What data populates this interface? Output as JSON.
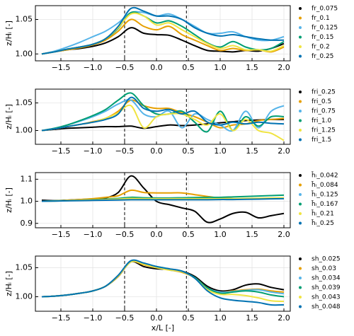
{
  "chart_data": [
    {
      "type": "line",
      "ylabel": "z/Hᵢ [-]",
      "xlim": [
        -1.9,
        2.1
      ],
      "ylim": [
        0.99,
        1.07
      ],
      "xticks": [
        {
          "value": -1.5,
          "label": "−1.5"
        },
        {
          "value": -1.0,
          "label": "−1.0"
        },
        {
          "value": -0.5,
          "label": "−0.5"
        },
        {
          "value": 0,
          "label": "0.0"
        },
        0.5,
        {
          "value": 1.0,
          "label": "1.0"
        },
        1.5,
        {
          "value": 2.0,
          "label": "2.0"
        }
      ],
      "yticks": [
        {
          "value": 1.0,
          "label": "1.00"
        },
        1.05
      ],
      "grid": true,
      "vlines": [
        -0.5,
        0.47
      ],
      "x": [
        -1.8,
        -1.6,
        -1.4,
        -1.2,
        -1.0,
        -0.8,
        -0.6,
        -0.4,
        -0.2,
        0.0,
        0.2,
        0.4,
        0.6,
        0.8,
        1.0,
        1.2,
        1.4,
        1.6,
        1.8,
        2.0
      ],
      "series": [
        {
          "name": "fr_0.075",
          "color": "#000000",
          "values": [
            1.0,
            1.003,
            1.006,
            1.008,
            1.011,
            1.016,
            1.025,
            1.038,
            1.03,
            1.028,
            1.027,
            1.02,
            1.012,
            1.005,
            1.004,
            1.003,
            1.005,
            1.004,
            1.008,
            1.015
          ]
        },
        {
          "name": "fr_0.1",
          "color": "#E69F00",
          "values": [
            1.0,
            1.003,
            1.006,
            1.009,
            1.013,
            1.02,
            1.033,
            1.05,
            1.04,
            1.035,
            1.04,
            1.028,
            1.02,
            1.012,
            1.005,
            1.008,
            1.005,
            1.006,
            1.003,
            1.01
          ]
        },
        {
          "name": "fr_0.125",
          "color": "#56B4E9",
          "values": [
            1.0,
            1.004,
            1.01,
            1.017,
            1.025,
            1.033,
            1.045,
            1.06,
            1.06,
            1.055,
            1.058,
            1.05,
            1.04,
            1.03,
            1.03,
            1.032,
            1.025,
            1.02,
            1.02,
            1.025
          ]
        },
        {
          "name": "fr_0.15",
          "color": "#009E73",
          "values": [
            1.0,
            1.003,
            1.007,
            1.01,
            1.014,
            1.022,
            1.037,
            1.06,
            1.055,
            1.045,
            1.048,
            1.04,
            1.028,
            1.016,
            1.01,
            1.018,
            1.01,
            1.006,
            1.008,
            1.018
          ]
        },
        {
          "name": "fr_0.2",
          "color": "#F0E442",
          "values": [
            1.0,
            1.003,
            1.007,
            1.01,
            1.014,
            1.022,
            1.038,
            1.058,
            1.055,
            1.042,
            1.045,
            1.035,
            1.025,
            1.015,
            1.008,
            1.012,
            1.006,
            1.006,
            1.004,
            1.012
          ]
        },
        {
          "name": "fr_0.25",
          "color": "#0072B2",
          "values": [
            1.0,
            1.003,
            1.007,
            1.01,
            1.014,
            1.022,
            1.04,
            1.066,
            1.062,
            1.055,
            1.055,
            1.05,
            1.038,
            1.03,
            1.026,
            1.028,
            1.025,
            1.022,
            1.02,
            1.02
          ]
        }
      ]
    },
    {
      "type": "line",
      "ylabel": "z/Hᵢ [-]",
      "xlim": [
        -1.9,
        2.1
      ],
      "ylim": [
        0.975,
        1.075
      ],
      "xticks": [
        {
          "value": -1.5,
          "label": "−1.5"
        },
        {
          "value": -1.0,
          "label": "−1.0"
        },
        {
          "value": -0.5,
          "label": "−0.5"
        },
        {
          "value": 0,
          "label": "0.0"
        },
        0.5,
        {
          "value": 1.0,
          "label": "1.0"
        },
        1.5,
        {
          "value": 2.0,
          "label": "2.0"
        }
      ],
      "yticks": [
        {
          "value": 1.0,
          "label": "1.00"
        },
        1.05
      ],
      "grid": true,
      "vlines": [
        -0.5,
        0.47
      ],
      "x": [
        -1.8,
        -1.6,
        -1.4,
        -1.2,
        -1.0,
        -0.8,
        -0.6,
        -0.4,
        -0.2,
        0.0,
        0.2,
        0.4,
        0.6,
        0.8,
        1.0,
        1.2,
        1.4,
        1.6,
        1.8,
        2.0
      ],
      "series": [
        {
          "name": "fri_0.25",
          "color": "#000000",
          "values": [
            1.0,
            1.002,
            1.004,
            1.005,
            1.006,
            1.007,
            1.007,
            1.008,
            1.004,
            1.007,
            1.01,
            1.009,
            1.01,
            1.012,
            1.014,
            1.016,
            1.018,
            1.019,
            1.02,
            1.02
          ]
        },
        {
          "name": "fri_0.5",
          "color": "#E69F00",
          "values": [
            1.0,
            1.003,
            1.007,
            1.011,
            1.016,
            1.022,
            1.035,
            1.055,
            1.045,
            1.04,
            1.04,
            1.032,
            1.025,
            1.015,
            1.005,
            1.01,
            1.012,
            1.018,
            1.02,
            1.022
          ]
        },
        {
          "name": "fri_0.75",
          "color": "#56B4E9",
          "values": [
            1.0,
            1.004,
            1.01,
            1.017,
            1.025,
            1.035,
            1.048,
            1.055,
            1.03,
            1.025,
            1.035,
            1.005,
            1.03,
            1.02,
            1.01,
            1.0,
            1.035,
            1.005,
            1.035,
            1.045
          ]
        },
        {
          "name": "fri_1.0",
          "color": "#009E73",
          "values": [
            1.0,
            1.004,
            1.01,
            1.018,
            1.027,
            1.038,
            1.055,
            1.068,
            1.045,
            1.03,
            1.03,
            1.035,
            1.015,
            0.998,
            1.035,
            1.0,
            1.025,
            1.008,
            1.025,
            1.025
          ]
        },
        {
          "name": "fri_1.25",
          "color": "#F0E442",
          "values": [
            1.0,
            1.003,
            1.007,
            1.011,
            1.015,
            1.022,
            1.032,
            1.045,
            1.005,
            1.025,
            1.03,
            1.03,
            1.02,
            1.01,
            1.03,
            1.0,
            1.02,
            1.0,
            0.995,
            0.982
          ]
        },
        {
          "name": "fri_1.5",
          "color": "#0072B2",
          "values": [
            1.0,
            1.003,
            1.007,
            1.011,
            1.015,
            1.02,
            1.03,
            1.06,
            1.04,
            1.035,
            1.038,
            1.03,
            1.035,
            1.015,
            1.01,
            1.015,
            1.012,
            1.015,
            1.013,
            1.012
          ]
        }
      ]
    },
    {
      "type": "line",
      "ylabel": "z/Hᵢ [-]",
      "xlim": [
        -1.9,
        2.1
      ],
      "ylim": [
        0.88,
        1.13
      ],
      "xticks": [
        {
          "value": -1.5,
          "label": "−1.5"
        },
        {
          "value": -1.0,
          "label": "−1.0"
        },
        {
          "value": -0.5,
          "label": "−0.5"
        },
        {
          "value": 0,
          "label": "0.0"
        },
        0.5,
        {
          "value": 1.0,
          "label": "1.0"
        },
        1.5,
        {
          "value": 2.0,
          "label": "2.0"
        }
      ],
      "yticks": [
        0.9,
        {
          "value": 1.0,
          "label": "1.0"
        },
        1.1
      ],
      "grid": true,
      "vlines": [
        -0.5,
        0.47
      ],
      "x": [
        -1.8,
        -1.6,
        -1.4,
        -1.2,
        -1.0,
        -0.8,
        -0.6,
        -0.4,
        -0.2,
        0.0,
        0.2,
        0.4,
        0.6,
        0.8,
        1.0,
        1.2,
        1.4,
        1.6,
        1.8,
        2.0
      ],
      "series": [
        {
          "name": "h̄ᵢ_0.042",
          "color": "#000000",
          "values": [
            1.005,
            1.003,
            1.005,
            1.008,
            1.01,
            1.015,
            1.04,
            1.115,
            1.06,
            1.0,
            0.985,
            0.97,
            0.955,
            0.905,
            0.92,
            0.945,
            0.95,
            0.925,
            0.935,
            0.945
          ]
        },
        {
          "name": "h̄ᵢ_0.084",
          "color": "#E69F00",
          "values": [
            1.0,
            1.002,
            1.005,
            1.008,
            1.012,
            1.018,
            1.025,
            1.05,
            1.04,
            1.038,
            1.038,
            1.038,
            1.03,
            1.022,
            1.015,
            1.012,
            1.01,
            1.012,
            1.012,
            1.015
          ]
        },
        {
          "name": "h̄ᵢ_0.125",
          "color": "#56B4E9",
          "values": [
            1.0,
            1.001,
            1.003,
            1.005,
            1.006,
            1.008,
            1.01,
            1.012,
            1.012,
            1.012,
            1.012,
            1.012,
            1.012,
            1.012,
            1.012,
            1.012,
            1.012,
            1.012,
            1.014,
            1.015
          ]
        },
        {
          "name": "h̄ᵢ_0.167",
          "color": "#009E73",
          "values": [
            1.0,
            1.002,
            1.003,
            1.005,
            1.007,
            1.01,
            1.013,
            1.018,
            1.016,
            1.015,
            1.015,
            1.016,
            1.017,
            1.018,
            1.018,
            1.02,
            1.022,
            1.024,
            1.026,
            1.028
          ]
        },
        {
          "name": "h̄ᵢ_0.21",
          "color": "#F0E442",
          "values": [
            1.0,
            1.001,
            1.003,
            1.005,
            1.006,
            1.008,
            1.01,
            1.013,
            1.012,
            1.012,
            1.012,
            1.012,
            1.012,
            1.012,
            1.012,
            1.012,
            1.013,
            1.014,
            1.015,
            1.016
          ]
        },
        {
          "name": "h̄ᵢ_0.25",
          "color": "#0072B2",
          "values": [
            1.0,
            1.001,
            1.002,
            1.003,
            1.004,
            1.005,
            1.006,
            1.007,
            1.007,
            1.007,
            1.007,
            1.007,
            1.007,
            1.007,
            1.008,
            1.008,
            1.009,
            1.01,
            1.011,
            1.012
          ]
        }
      ]
    },
    {
      "type": "line",
      "ylabel": "z/Hᵢ [-]",
      "xlabel": "x/L [-]",
      "xlim": [
        -1.9,
        2.1
      ],
      "ylim": [
        0.975,
        1.07
      ],
      "xticks": [
        {
          "value": -1.5,
          "label": "−1.5"
        },
        {
          "value": -1.0,
          "label": "−1.0"
        },
        {
          "value": -0.5,
          "label": "−0.5"
        },
        {
          "value": 0,
          "label": "0.0"
        },
        0.5,
        {
          "value": 1.0,
          "label": "1.0"
        },
        1.5,
        {
          "value": 2.0,
          "label": "2.0"
        }
      ],
      "yticks": [
        {
          "value": 1.0,
          "label": "1.00"
        },
        1.05
      ],
      "grid": true,
      "vlines": [
        -0.5,
        0.47
      ],
      "x": [
        -1.8,
        -1.6,
        -1.4,
        -1.2,
        -1.0,
        -0.8,
        -0.6,
        -0.4,
        -0.2,
        0.0,
        0.2,
        0.4,
        0.6,
        0.8,
        1.0,
        1.2,
        1.4,
        1.6,
        1.8,
        2.0
      ],
      "series": [
        {
          "name": "sh_0.025",
          "color": "#000000",
          "values": [
            1.0,
            1.001,
            1.003,
            1.006,
            1.01,
            1.018,
            1.035,
            1.06,
            1.052,
            1.048,
            1.047,
            1.044,
            1.035,
            1.018,
            1.01,
            1.012,
            1.02,
            1.022,
            1.016,
            1.012
          ]
        },
        {
          "name": "sh_0.03",
          "color": "#E69F00",
          "values": [
            1.0,
            1.001,
            1.003,
            1.006,
            1.01,
            1.018,
            1.035,
            1.06,
            1.055,
            1.05,
            1.046,
            1.042,
            1.033,
            1.015,
            1.008,
            1.01,
            1.012,
            1.013,
            1.01,
            1.008
          ]
        },
        {
          "name": "sh_0.034",
          "color": "#56B4E9",
          "values": [
            1.0,
            1.001,
            1.003,
            1.006,
            1.01,
            1.018,
            1.036,
            1.06,
            1.057,
            1.051,
            1.046,
            1.043,
            1.033,
            1.015,
            1.008,
            1.009,
            1.011,
            1.012,
            1.008,
            1.005
          ]
        },
        {
          "name": "sh_0.039",
          "color": "#009E73",
          "values": [
            1.0,
            1.001,
            1.003,
            1.006,
            1.01,
            1.018,
            1.036,
            1.061,
            1.057,
            1.052,
            1.048,
            1.044,
            1.033,
            1.015,
            1.006,
            1.008,
            1.01,
            1.008,
            1.003,
            1.0
          ]
        },
        {
          "name": "sh_0.043",
          "color": "#F0E442",
          "values": [
            1.0,
            1.001,
            1.003,
            1.006,
            1.01,
            1.018,
            1.036,
            1.06,
            1.056,
            1.05,
            1.046,
            1.043,
            1.032,
            1.012,
            1.004,
            1.004,
            1.002,
            0.998,
            0.993,
            0.992
          ]
        },
        {
          "name": "sh_0.048",
          "color": "#0072B2",
          "values": [
            1.0,
            1.001,
            1.003,
            1.006,
            1.01,
            1.018,
            1.037,
            1.062,
            1.058,
            1.052,
            1.048,
            1.044,
            1.032,
            1.01,
            0.998,
            0.994,
            0.992,
            0.99,
            0.986,
            0.986
          ]
        }
      ]
    }
  ]
}
